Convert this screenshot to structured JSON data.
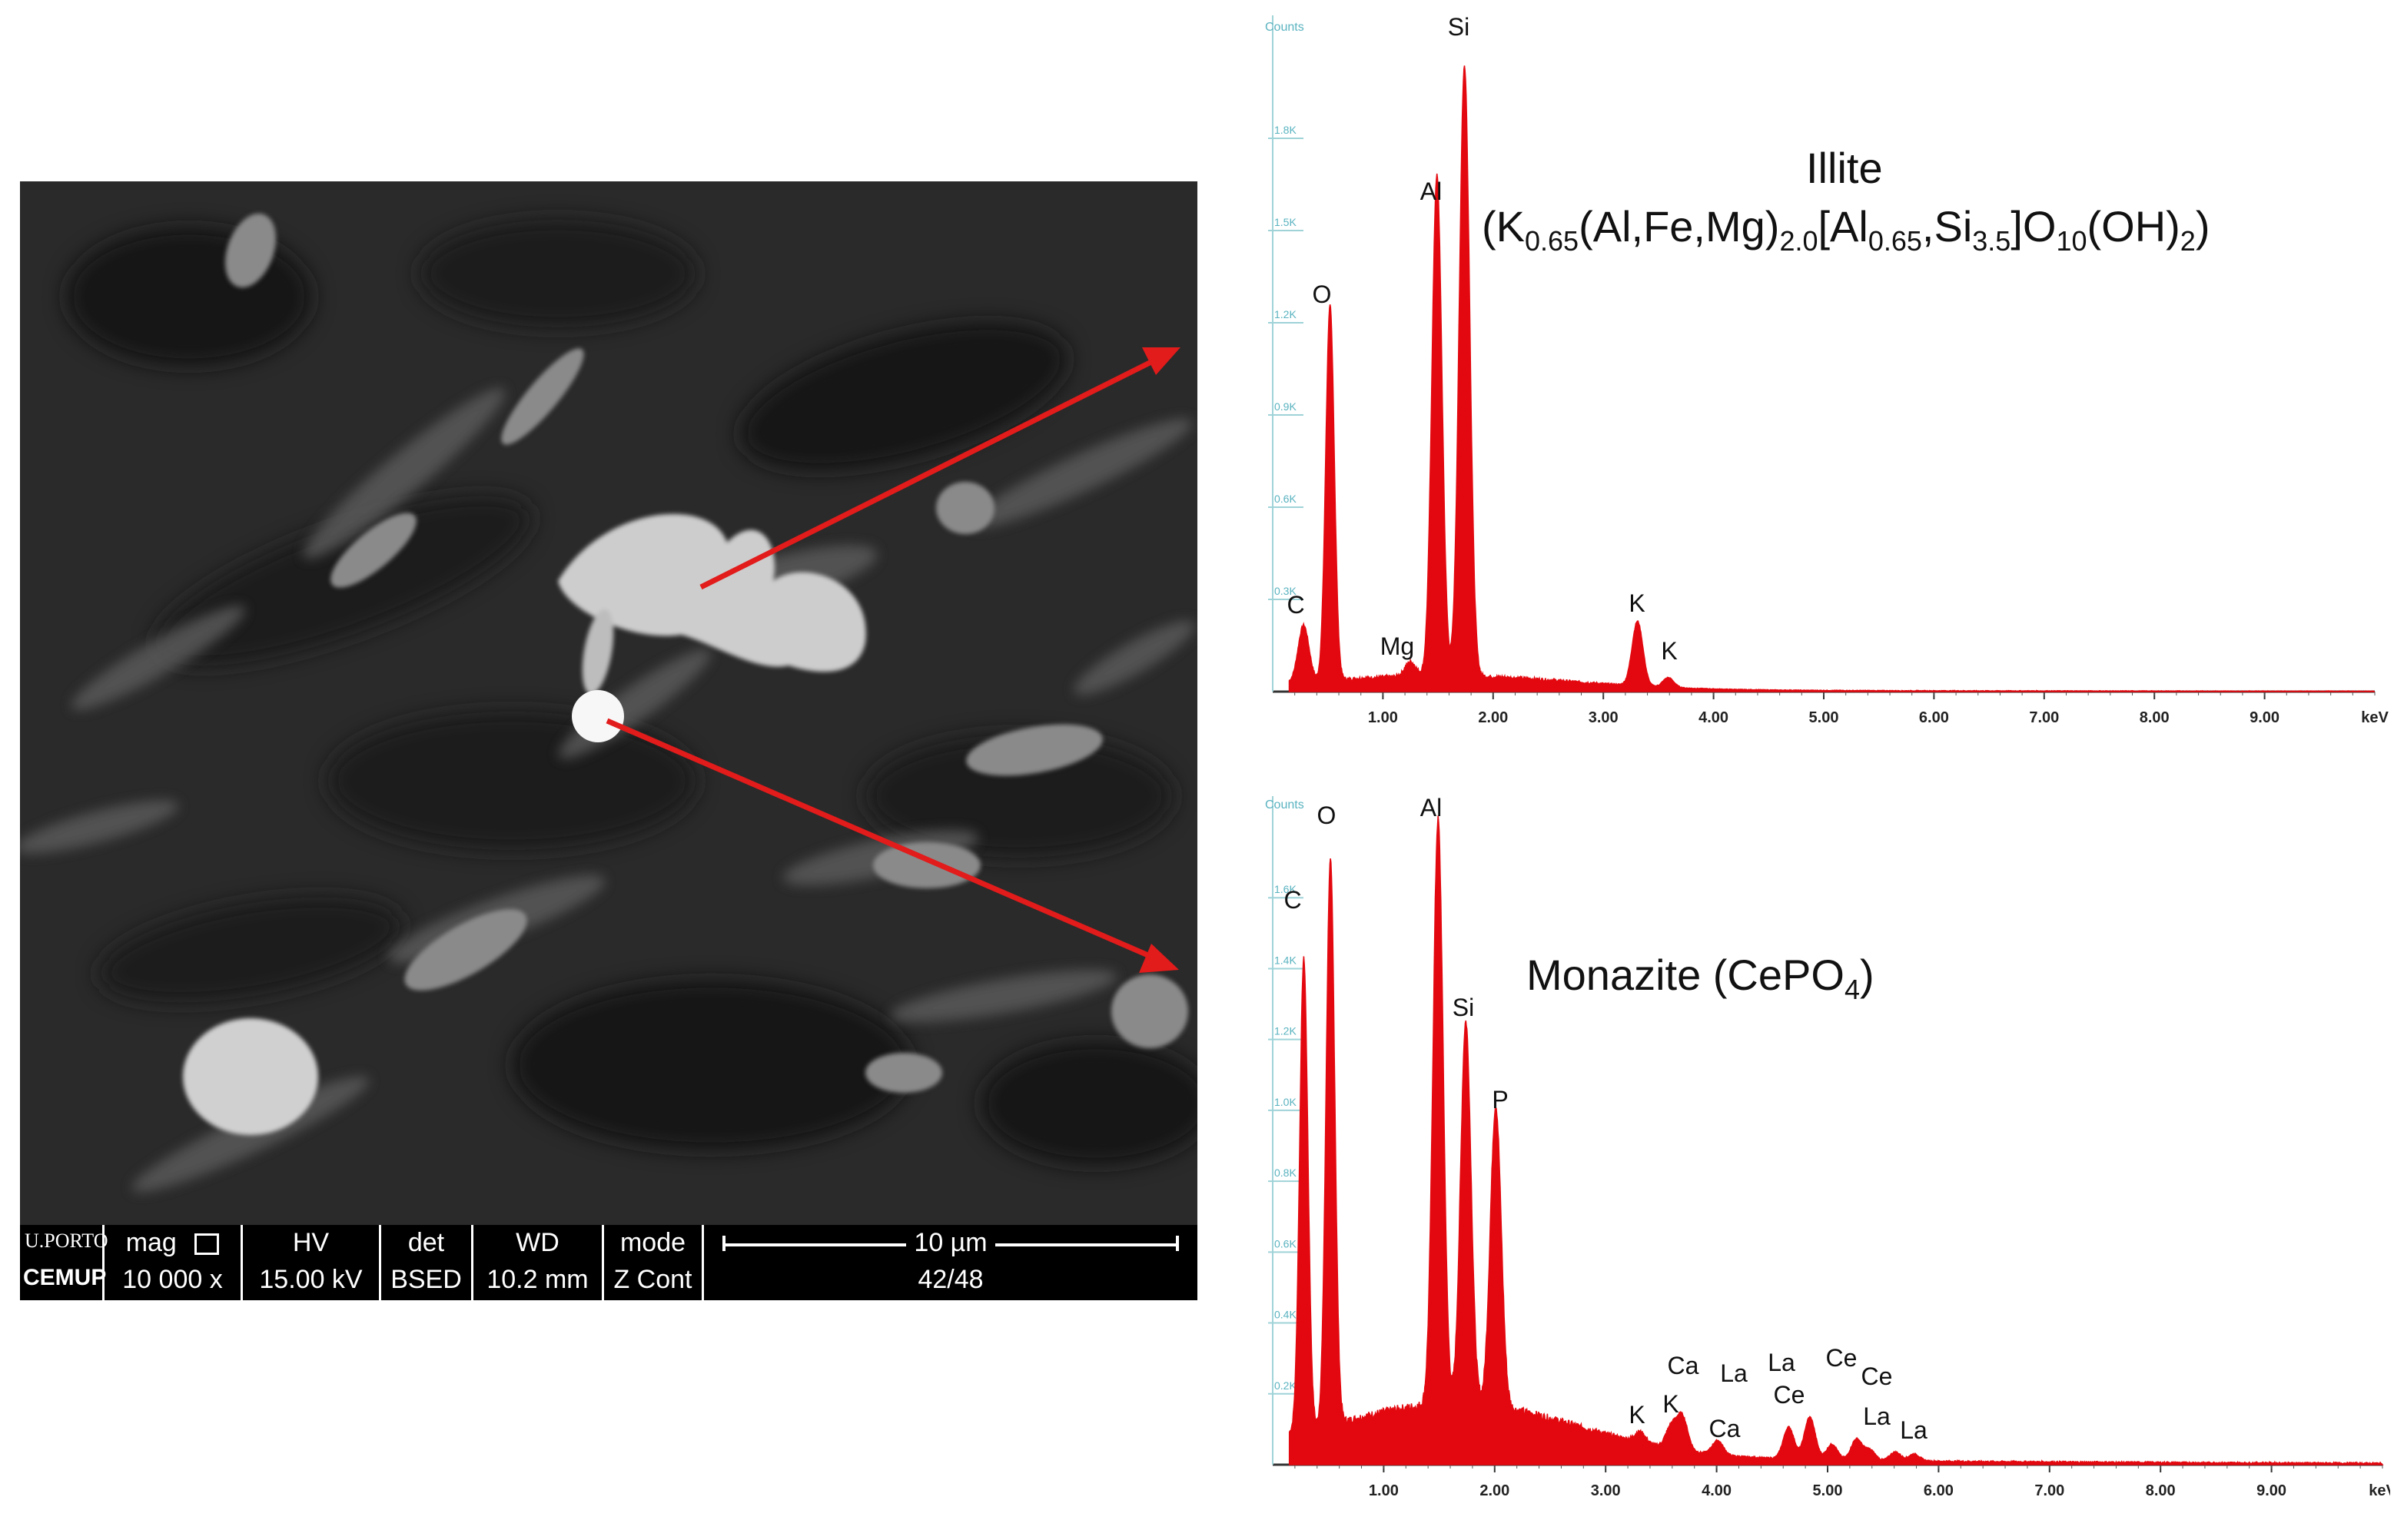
{
  "sem": {
    "databar": {
      "logo_top": "U.PORTO",
      "logo_bottom": "CEMUP",
      "mag_label": "mag",
      "mag_value": "10 000 x",
      "hv_label": "HV",
      "hv_value": "15.00 kV",
      "det_label": "det",
      "det_value": "BSED",
      "wd_label": "WD",
      "wd_value": "10.2 mm",
      "mode_label": "mode",
      "mode_value": "Z Cont",
      "scale_label": "10 µm",
      "frame": "42/48"
    }
  },
  "annotations": {
    "arrow_color": "#e21b1b"
  },
  "chart_data": [
    {
      "type": "line",
      "name": "Illite",
      "title": "Illite",
      "formula": {
        "parts": [
          {
            "t": "(K",
            "s": false
          },
          {
            "t": "0.65",
            "s": true
          },
          {
            "t": "(Al,Fe,Mg)",
            "s": false
          },
          {
            "t": "2.0",
            "s": true
          },
          {
            "t": "[Al",
            "s": false
          },
          {
            "t": "0.65",
            "s": true
          },
          {
            "t": ",Si",
            "s": false
          },
          {
            "t": "3.5",
            "s": true
          },
          {
            "t": "]O",
            "s": false
          },
          {
            "t": "10",
            "s": true
          },
          {
            "t": "(OH)",
            "s": false
          },
          {
            "t": "2",
            "s": true
          },
          {
            "t": ")",
            "s": false
          }
        ]
      },
      "ylabel": "Counts",
      "xlabel": "keV",
      "xlim": [
        0.0,
        10.0
      ],
      "ylim": [
        0,
        2000
      ],
      "xticks": [
        "1.00",
        "2.00",
        "3.00",
        "4.00",
        "5.00",
        "6.00",
        "7.00",
        "8.00",
        "9.00",
        "keV"
      ],
      "yticks": [
        "0.3K",
        "0.6K",
        "0.9K",
        "1.2K",
        "1.5K",
        "1.8K"
      ],
      "color": "#e3080f",
      "peaks": [
        {
          "label": "C",
          "x": 0.28,
          "y": 175
        },
        {
          "label": "O",
          "x": 0.52,
          "y": 1160
        },
        {
          "label": "Mg",
          "x": 1.25,
          "y": 45
        },
        {
          "label": "Al",
          "x": 1.49,
          "y": 1550
        },
        {
          "label": "Si",
          "x": 1.74,
          "y": 1890
        },
        {
          "label": "K",
          "x": 3.31,
          "y": 200
        },
        {
          "label": "K",
          "x": 3.59,
          "y": 30
        }
      ]
    },
    {
      "type": "line",
      "name": "Monazite",
      "title": "Monazite (CePO4)",
      "title_parts": [
        {
          "t": "Monazite (CePO",
          "s": false
        },
        {
          "t": "4",
          "s": true
        },
        {
          "t": ")",
          "s": false
        }
      ],
      "ylabel": "Counts",
      "xlabel": "keV",
      "xlim": [
        0.0,
        10.0
      ],
      "ylim": [
        0,
        1800
      ],
      "xticks": [
        "1.00",
        "2.00",
        "3.00",
        "4.00",
        "5.00",
        "6.00",
        "7.00",
        "8.00",
        "9.00",
        "keV"
      ],
      "yticks": [
        "0.2K",
        "0.4K",
        "0.6K",
        "0.8K",
        "1.0K",
        "1.2K",
        "1.4K",
        "1.6K"
      ],
      "color": "#e3080f",
      "peaks": [
        {
          "label": "C",
          "x": 0.28,
          "y": 1330
        },
        {
          "label": "O",
          "x": 0.52,
          "y": 1590
        },
        {
          "label": "Al",
          "x": 1.49,
          "y": 1650
        },
        {
          "label": "Si",
          "x": 1.74,
          "y": 1080
        },
        {
          "label": "P",
          "x": 2.01,
          "y": 850
        },
        {
          "label": "K",
          "x": 3.31,
          "y": 30
        },
        {
          "label": "K",
          "x": 3.59,
          "y": 60
        },
        {
          "label": "Ca",
          "x": 3.69,
          "y": 95
        },
        {
          "label": "Ca",
          "x": 4.01,
          "y": 40
        },
        {
          "label": "La",
          "x": 4.65,
          "y": 90
        },
        {
          "label": "Ce",
          "x": 4.84,
          "y": 120
        },
        {
          "label": "La",
          "x": 5.04,
          "y": 45
        },
        {
          "label": "Ce",
          "x": 5.26,
          "y": 60
        },
        {
          "label": "La",
          "x": 5.38,
          "y": 30
        },
        {
          "label": "Ce",
          "x": 5.61,
          "y": 25
        },
        {
          "label": "La",
          "x": 5.78,
          "y": 20
        }
      ]
    }
  ]
}
